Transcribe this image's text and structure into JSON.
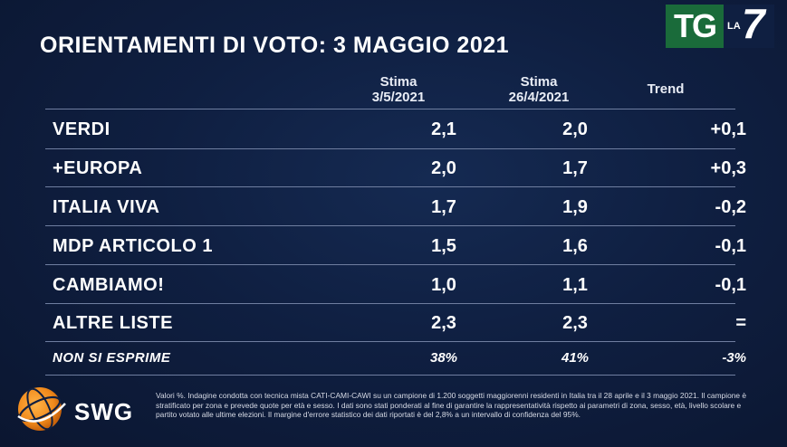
{
  "title": "ORIENTAMENTI DI VOTO: 3 MAGGIO 2021",
  "logo": {
    "tg": "TG",
    "la": "LA",
    "seven": "7"
  },
  "headers": {
    "col1_line1": "Stima",
    "col1_line2": "3/5/2021",
    "col2_line1": "Stima",
    "col2_line2": "26/4/2021",
    "col3": "Trend"
  },
  "rows": [
    {
      "party": "VERDI",
      "stima_3_5": "2,1",
      "stima_26_4": "2,0",
      "trend": "+0,1"
    },
    {
      "party": "+EUROPA",
      "stima_3_5": "2,0",
      "stima_26_4": "1,7",
      "trend": "+0,3"
    },
    {
      "party": "ITALIA VIVA",
      "stima_3_5": "1,7",
      "stima_26_4": "1,9",
      "trend": "-0,2"
    },
    {
      "party": "MDP ARTICOLO 1",
      "stima_3_5": "1,5",
      "stima_26_4": "1,6",
      "trend": "-0,1"
    },
    {
      "party": "CAMBIAMO!",
      "stima_3_5": "1,0",
      "stima_26_4": "1,1",
      "trend": "-0,1"
    },
    {
      "party": "ALTRE LISTE",
      "stima_3_5": "2,3",
      "stima_26_4": "2,3",
      "trend": "="
    }
  ],
  "non_esprime": {
    "party": "NON SI ESPRIME",
    "stima_3_5": "38%",
    "stima_26_4": "41%",
    "trend": "-3%"
  },
  "swg": {
    "name": "SWG"
  },
  "note": "Valori %. Indagine condotta con tecnica mista CATI-CAMI-CAWI su un campione di 1.200 soggetti maggiorenni residenti in Italia tra il 28 aprile e il 3 maggio 2021. Il campione è stratificato per zona e prevede quote per età e sesso. I dati sono stati ponderati al fine di garantire la rappresentatività rispetto ai parametri di zona, sesso, età, livello scolare e partito votato alle ultime elezioni. Il margine d'errore statistico dei dati riportati è del 2,8% a un intervallo di confidenza del 95%.",
  "colors": {
    "background": "#0f1f41",
    "tg_green": "#1a6b3a",
    "swg_orange": "#f08a1c",
    "divider": "#6f7ea0"
  }
}
